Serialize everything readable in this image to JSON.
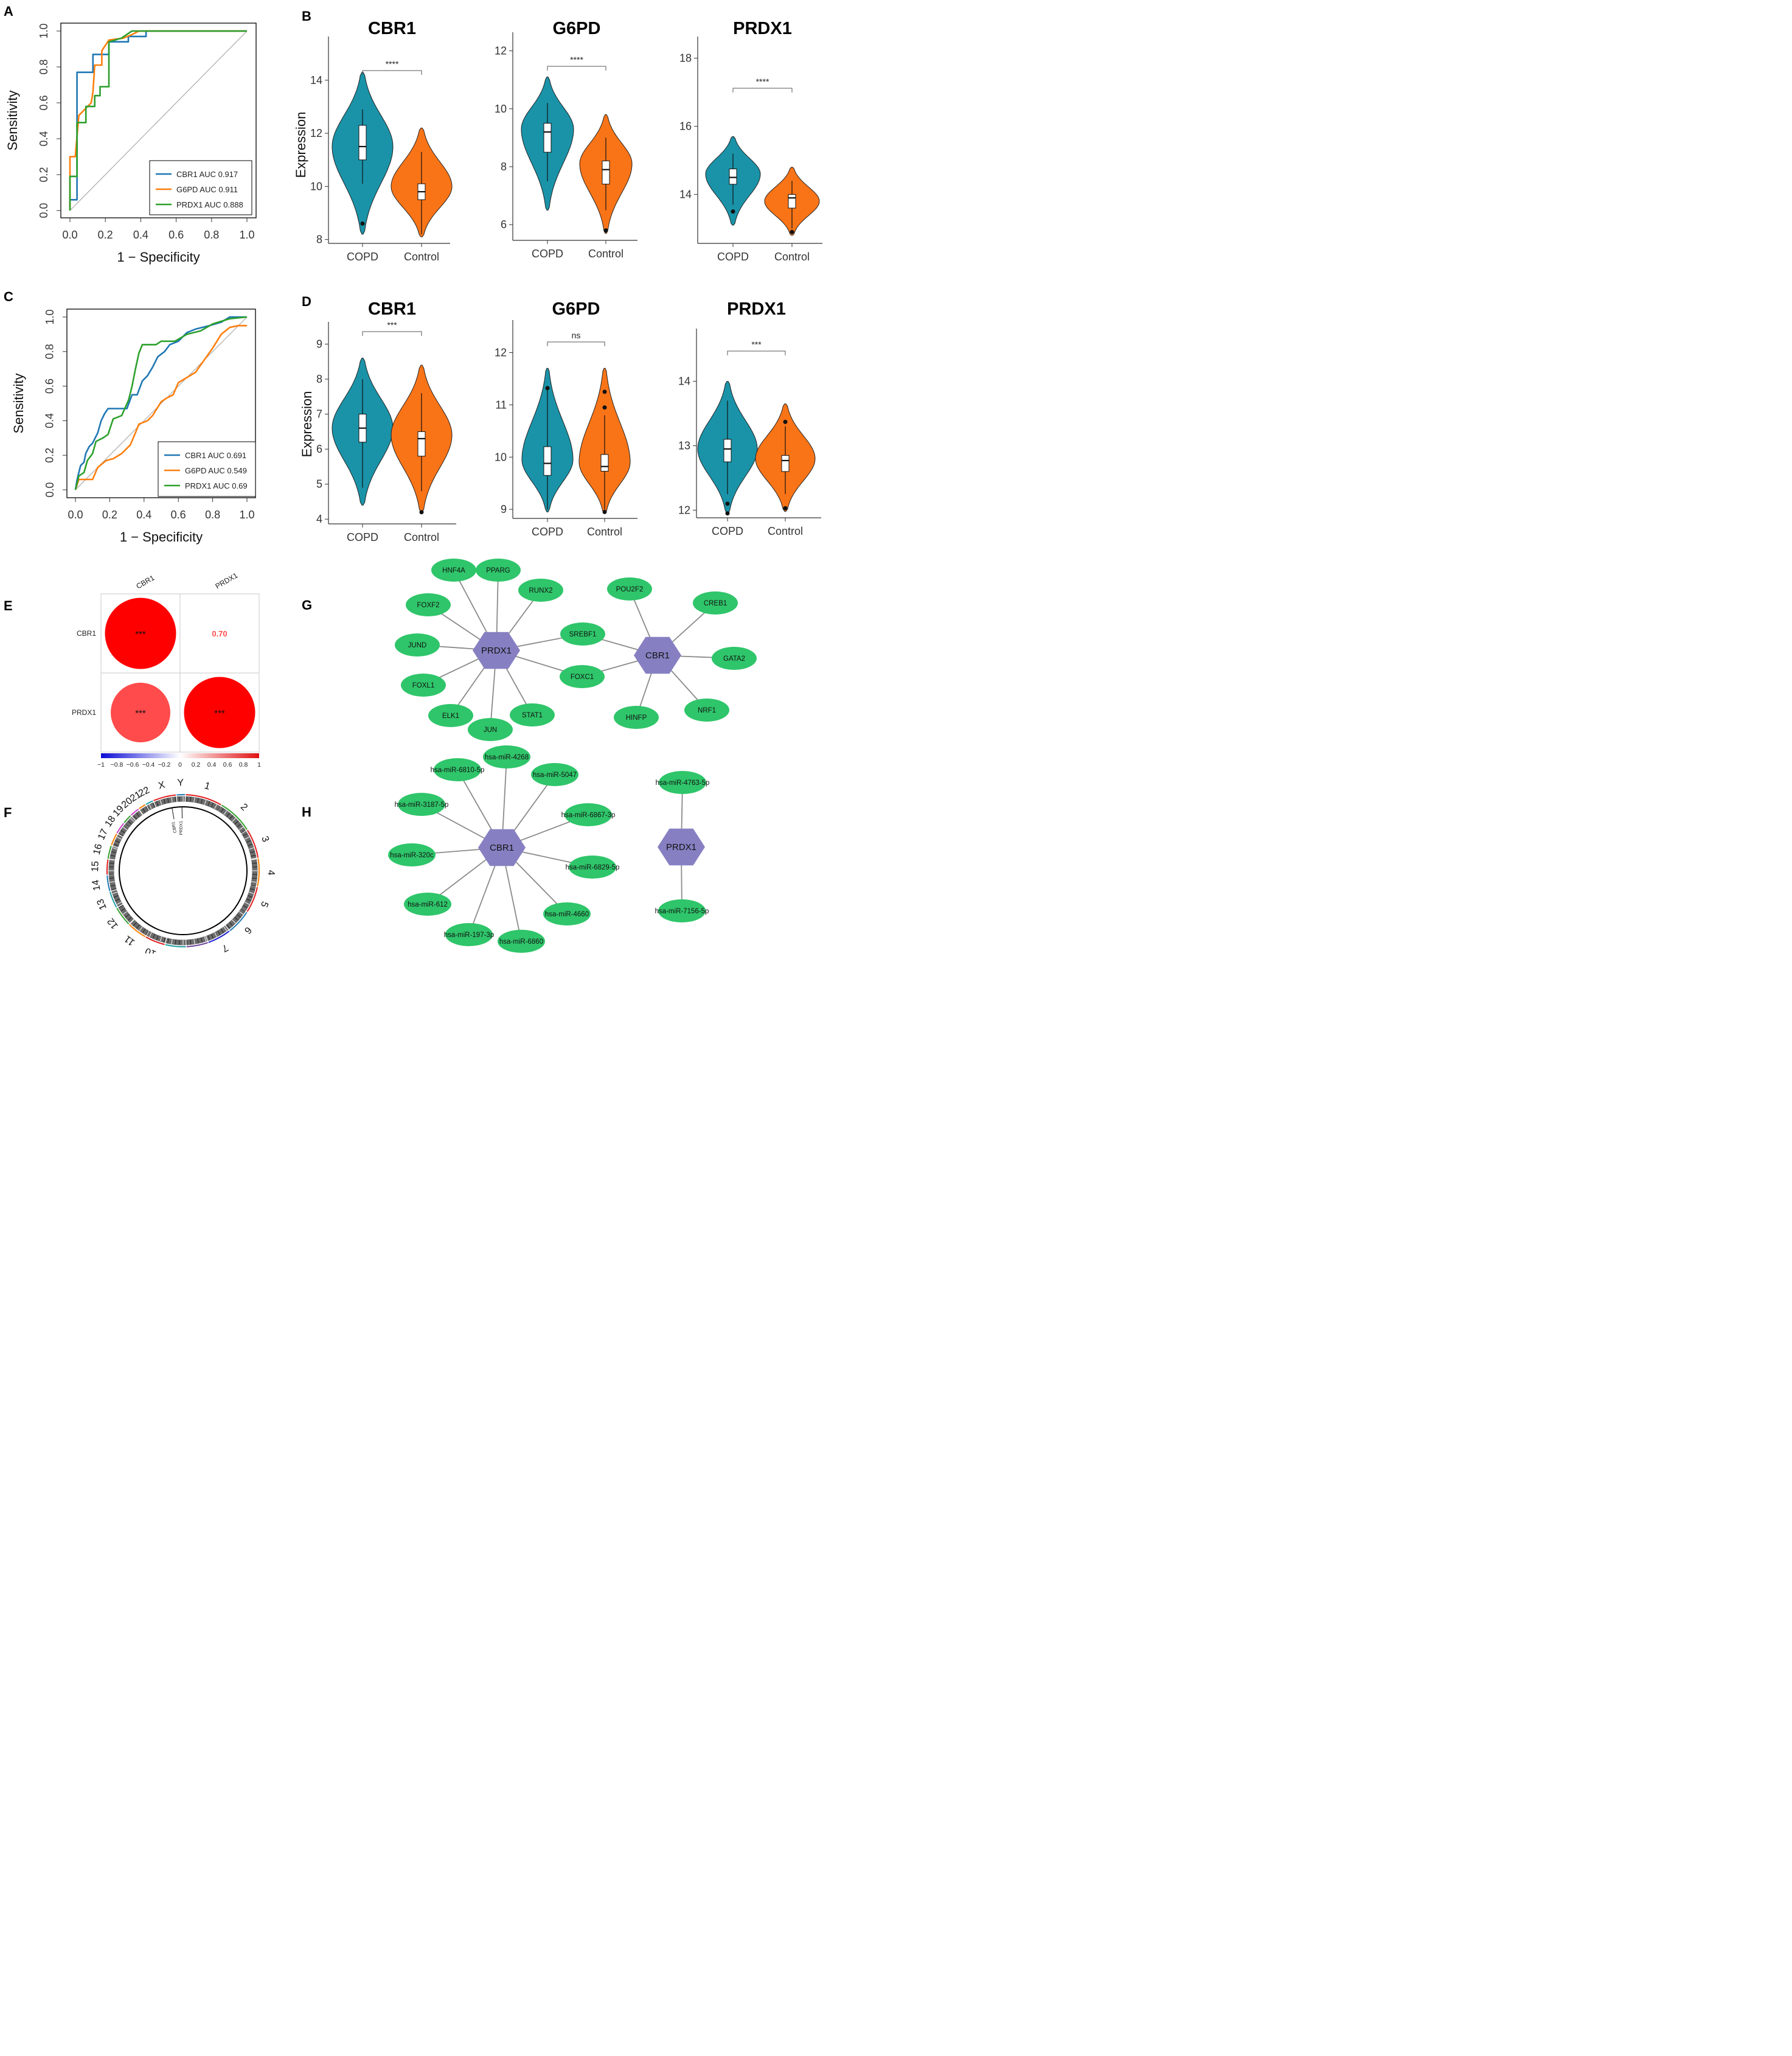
{
  "panels": {
    "A": "A",
    "B": "B",
    "C": "C",
    "D": "D",
    "E": "E",
    "F": "F",
    "G": "G",
    "H": "H"
  },
  "colors": {
    "cbr1": "#1f77b4",
    "g6pd": "#ff7f0e",
    "prdx1": "#2ca02c",
    "copd": "#1a93a8",
    "control": "#f97417",
    "node": "#2fc56a",
    "hub": "#8680c2"
  },
  "chart_data": [
    {
      "id": "A",
      "type": "line",
      "xlabel": "1 − Specificity",
      "ylabel": "Sensitivity",
      "xlim": [
        0,
        1
      ],
      "ylim": [
        0,
        1
      ],
      "ticks": [
        "0.0",
        "0.2",
        "0.4",
        "0.6",
        "0.8",
        "1.0"
      ],
      "series": [
        {
          "name": "CBR1 AUC 0.917",
          "key": "cbr1",
          "points": [
            [
              0,
              0
            ],
            [
              0,
              0.06
            ],
            [
              0.04,
              0.06
            ],
            [
              0.04,
              0.77
            ],
            [
              0.13,
              0.77
            ],
            [
              0.13,
              0.87
            ],
            [
              0.22,
              0.87
            ],
            [
              0.22,
              0.94
            ],
            [
              0.33,
              0.94
            ],
            [
              0.33,
              0.97
            ],
            [
              0.43,
              0.97
            ],
            [
              0.43,
              1
            ],
            [
              1,
              1
            ]
          ]
        },
        {
          "name": "G6PD AUC 0.911",
          "key": "g6pd",
          "points": [
            [
              0,
              0
            ],
            [
              0,
              0.3
            ],
            [
              0.03,
              0.3
            ],
            [
              0.05,
              0.53
            ],
            [
              0.12,
              0.6
            ],
            [
              0.13,
              0.66
            ],
            [
              0.14,
              0.81
            ],
            [
              0.18,
              0.81
            ],
            [
              0.18,
              0.89
            ],
            [
              0.22,
              0.95
            ],
            [
              0.3,
              0.96
            ],
            [
              0.35,
              0.98
            ],
            [
              0.39,
              1
            ],
            [
              1,
              1
            ]
          ]
        },
        {
          "name": "PRDX1 AUC 0.888",
          "key": "prdx1",
          "points": [
            [
              0,
              0
            ],
            [
              0,
              0.19
            ],
            [
              0.04,
              0.19
            ],
            [
              0.04,
              0.49
            ],
            [
              0.09,
              0.49
            ],
            [
              0.09,
              0.58
            ],
            [
              0.14,
              0.58
            ],
            [
              0.14,
              0.64
            ],
            [
              0.17,
              0.64
            ],
            [
              0.17,
              0.69
            ],
            [
              0.22,
              0.69
            ],
            [
              0.22,
              0.94
            ],
            [
              0.29,
              0.96
            ],
            [
              0.35,
              1
            ],
            [
              1,
              1
            ]
          ]
        }
      ]
    },
    {
      "id": "B",
      "type": "violin",
      "ylabel": "Expression",
      "groups": [
        "COPD",
        "Control"
      ],
      "plots": [
        {
          "title": "CBR1",
          "ylim": [
            7.9,
            15.6
          ],
          "ticks": [
            "8",
            "10",
            "12",
            "14"
          ],
          "sig": "****",
          "copd": {
            "min": 8.2,
            "max": 14.3,
            "q1": 11.0,
            "median": 11.5,
            "q3": 12.3,
            "wlo": 10.1,
            "whi": 12.9,
            "outliers": [
              8.6
            ],
            "peak": 11.5
          },
          "control": {
            "min": 8.1,
            "max": 12.2,
            "q1": 9.5,
            "median": 9.8,
            "q3": 10.1,
            "wlo": 8.2,
            "whi": 11.3,
            "outliers": [],
            "peak": 10.0
          }
        },
        {
          "title": "G6PD",
          "ylim": [
            5.5,
            12.6
          ],
          "ticks": [
            "6",
            "8",
            "10",
            "12"
          ],
          "sig": "****",
          "copd": {
            "min": 6.5,
            "max": 11.1,
            "q1": 8.5,
            "median": 9.2,
            "q3": 9.5,
            "wlo": 7.5,
            "whi": 10.2,
            "outliers": [],
            "peak": 9.3
          },
          "control": {
            "min": 5.7,
            "max": 9.8,
            "q1": 7.4,
            "median": 7.9,
            "q3": 8.2,
            "wlo": 6.5,
            "whi": 9.0,
            "outliers": [
              5.8
            ],
            "peak": 8.1
          }
        },
        {
          "title": "PRDX1",
          "ylim": [
            12.6,
            18.6
          ],
          "ticks": [
            "14",
            "16",
            "18"
          ],
          "sig": "****",
          "copd": {
            "min": 13.1,
            "max": 15.7,
            "q1": 14.3,
            "median": 14.5,
            "q3": 14.75,
            "wlo": 13.7,
            "whi": 15.2,
            "outliers": [
              13.5
            ],
            "peak": 14.6
          },
          "control": {
            "min": 12.8,
            "max": 14.8,
            "q1": 13.6,
            "median": 13.9,
            "q3": 14.0,
            "wlo": 13.0,
            "whi": 14.4,
            "outliers": [
              12.9
            ],
            "peak": 13.8
          }
        }
      ]
    },
    {
      "id": "C",
      "type": "line",
      "xlabel": "1 − Specificity",
      "ylabel": "Sensitivity",
      "xlim": [
        0,
        1
      ],
      "ylim": [
        0,
        1
      ],
      "ticks": [
        "0.0",
        "0.2",
        "0.4",
        "0.6",
        "0.8",
        "1.0"
      ],
      "series": [
        {
          "name": "CBR1 AUC 0.691",
          "key": "cbr1",
          "points": [
            [
              0,
              0
            ],
            [
              0.01,
              0.06
            ],
            [
              0.02,
              0.1
            ],
            [
              0.03,
              0.14
            ],
            [
              0.05,
              0.16
            ],
            [
              0.06,
              0.21
            ],
            [
              0.08,
              0.25
            ],
            [
              0.1,
              0.27
            ],
            [
              0.13,
              0.33
            ],
            [
              0.15,
              0.4
            ],
            [
              0.17,
              0.44
            ],
            [
              0.19,
              0.47
            ],
            [
              0.3,
              0.47
            ],
            [
              0.33,
              0.55
            ],
            [
              0.36,
              0.55
            ],
            [
              0.39,
              0.63
            ],
            [
              0.42,
              0.66
            ],
            [
              0.45,
              0.71
            ],
            [
              0.48,
              0.77
            ],
            [
              0.52,
              0.8
            ],
            [
              0.55,
              0.84
            ],
            [
              0.6,
              0.86
            ],
            [
              0.65,
              0.91
            ],
            [
              0.7,
              0.93
            ],
            [
              0.78,
              0.95
            ],
            [
              0.85,
              0.97
            ],
            [
              0.9,
              1
            ],
            [
              1,
              1
            ]
          ]
        },
        {
          "name": "G6PD AUC 0.549",
          "key": "g6pd",
          "points": [
            [
              0,
              0
            ],
            [
              0.02,
              0.06
            ],
            [
              0.1,
              0.06
            ],
            [
              0.13,
              0.13
            ],
            [
              0.18,
              0.17
            ],
            [
              0.22,
              0.18
            ],
            [
              0.27,
              0.21
            ],
            [
              0.32,
              0.26
            ],
            [
              0.35,
              0.33
            ],
            [
              0.37,
              0.38
            ],
            [
              0.42,
              0.4
            ],
            [
              0.45,
              0.43
            ],
            [
              0.5,
              0.51
            ],
            [
              0.53,
              0.53
            ],
            [
              0.57,
              0.55
            ],
            [
              0.6,
              0.62
            ],
            [
              0.7,
              0.68
            ],
            [
              0.75,
              0.75
            ],
            [
              0.8,
              0.82
            ],
            [
              0.85,
              0.9
            ],
            [
              0.9,
              0.94
            ],
            [
              0.95,
              0.95
            ],
            [
              1,
              0.95
            ]
          ]
        },
        {
          "name": "PRDX1 AUC 0.69",
          "key": "prdx1",
          "points": [
            [
              0,
              0
            ],
            [
              0.02,
              0.08
            ],
            [
              0.05,
              0.1
            ],
            [
              0.07,
              0.17
            ],
            [
              0.1,
              0.21
            ],
            [
              0.12,
              0.28
            ],
            [
              0.16,
              0.3
            ],
            [
              0.19,
              0.32
            ],
            [
              0.22,
              0.41
            ],
            [
              0.27,
              0.43
            ],
            [
              0.31,
              0.52
            ],
            [
              0.33,
              0.6
            ],
            [
              0.35,
              0.7
            ],
            [
              0.37,
              0.79
            ],
            [
              0.39,
              0.84
            ],
            [
              0.47,
              0.84
            ],
            [
              0.5,
              0.86
            ],
            [
              0.53,
              0.86
            ],
            [
              0.58,
              0.86
            ],
            [
              0.65,
              0.9
            ],
            [
              0.73,
              0.92
            ],
            [
              0.8,
              0.96
            ],
            [
              0.9,
              0.99
            ],
            [
              1,
              1
            ]
          ]
        }
      ]
    },
    {
      "id": "D",
      "type": "violin",
      "ylabel": "Expression",
      "groups": [
        "COPD",
        "Control"
      ],
      "plots": [
        {
          "title": "CBR1",
          "ylim": [
            3.9,
            9.6
          ],
          "ticks": [
            "4",
            "5",
            "6",
            "7",
            "8",
            "9"
          ],
          "sig": "***",
          "copd": {
            "min": 4.4,
            "max": 8.6,
            "q1": 6.2,
            "median": 6.6,
            "q3": 7.0,
            "wlo": 4.9,
            "whi": 8.0,
            "outliers": [],
            "peak": 6.6
          },
          "control": {
            "min": 4.2,
            "max": 8.4,
            "q1": 5.8,
            "median": 6.3,
            "q3": 6.5,
            "wlo": 4.8,
            "whi": 7.6,
            "outliers": [
              4.2
            ],
            "peak": 6.4
          }
        },
        {
          "title": "G6PD",
          "ylim": [
            8.85,
            12.6
          ],
          "ticks": [
            "9",
            "10",
            "11",
            "12"
          ],
          "sig": "ns",
          "copd": {
            "min": 8.95,
            "max": 11.7,
            "q1": 9.65,
            "median": 9.88,
            "q3": 10.2,
            "wlo": 9.0,
            "whi": 11.3,
            "outliers": [
              11.32
            ],
            "peak": 9.95
          },
          "control": {
            "min": 8.92,
            "max": 11.7,
            "q1": 9.73,
            "median": 9.82,
            "q3": 10.05,
            "wlo": 9.0,
            "whi": 10.8,
            "outliers": [
              8.95,
              10.95,
              11.25
            ],
            "peak": 9.9
          }
        },
        {
          "title": "PRDX1",
          "ylim": [
            11.9,
            14.8
          ],
          "ticks": [
            "12",
            "13",
            "14"
          ],
          "sig": "***",
          "copd": {
            "min": 11.95,
            "max": 14.0,
            "q1": 12.75,
            "median": 12.95,
            "q3": 13.1,
            "wlo": 12.25,
            "whi": 13.7,
            "outliers": [
              12.1,
              11.95
            ],
            "peak": 12.95
          },
          "control": {
            "min": 11.98,
            "max": 13.65,
            "q1": 12.6,
            "median": 12.77,
            "q3": 12.85,
            "wlo": 12.25,
            "whi": 13.3,
            "outliers": [
              13.37,
              12.03
            ],
            "peak": 12.8
          }
        }
      ]
    },
    {
      "id": "E",
      "type": "heatmap",
      "labels": [
        "CBR1",
        "PRDX1"
      ],
      "values": [
        [
          1.0,
          0.7
        ],
        [
          0.7,
          1.0
        ]
      ],
      "cells": [
        [
          "***",
          "0.70"
        ],
        [
          "***",
          "***"
        ]
      ],
      "scale": {
        "min": -1,
        "max": 1,
        "ticks": [
          "−1",
          "−0.8",
          "−0.6",
          "−0.4",
          "−0.2",
          "0",
          "0.2",
          "0.4",
          "0.6",
          "0.8",
          "1"
        ]
      }
    }
  ],
  "circos": {
    "chromosomes": [
      "1",
      "2",
      "3",
      "4",
      "5",
      "6",
      "7",
      "8",
      "9",
      "10",
      "11",
      "12",
      "13",
      "14",
      "15",
      "16",
      "17",
      "18",
      "19",
      "20",
      "21",
      "22",
      "X",
      "Y"
    ],
    "genes": [
      {
        "label": "CBR1"
      },
      {
        "label": "PRDX1"
      }
    ]
  },
  "networkG": {
    "hubs": [
      {
        "id": "PRDX1",
        "label": "PRDX1"
      },
      {
        "id": "CBR1",
        "label": "CBR1"
      }
    ],
    "nodes": [
      {
        "label": "HNF4A",
        "hub": "PRDX1"
      },
      {
        "label": "PPARG",
        "hub": "PRDX1"
      },
      {
        "label": "RUNX2",
        "hub": "PRDX1"
      },
      {
        "label": "FOXF2",
        "hub": "PRDX1"
      },
      {
        "label": "JUND",
        "hub": "PRDX1"
      },
      {
        "label": "FOXL1",
        "hub": "PRDX1"
      },
      {
        "label": "ELK1",
        "hub": "PRDX1"
      },
      {
        "label": "JUN",
        "hub": "PRDX1"
      },
      {
        "label": "STAT1",
        "hub": "PRDX1"
      },
      {
        "label": "SREBF1",
        "hub": "both"
      },
      {
        "label": "FOXC1",
        "hub": "both"
      },
      {
        "label": "POU2F2",
        "hub": "CBR1"
      },
      {
        "label": "CREB1",
        "hub": "CBR1"
      },
      {
        "label": "GATA2",
        "hub": "CBR1"
      },
      {
        "label": "NRF1",
        "hub": "CBR1"
      },
      {
        "label": "HINFP",
        "hub": "CBR1"
      }
    ]
  },
  "networkH": {
    "hubs": [
      {
        "id": "CBR1",
        "label": "CBR1"
      },
      {
        "id": "PRDX1",
        "label": "PRDX1"
      }
    ],
    "nodes": [
      {
        "label": "hsa-miR-4268",
        "hub": "CBR1"
      },
      {
        "label": "hsa-miR-6810-5p",
        "hub": "CBR1"
      },
      {
        "label": "hsa-miR-5047",
        "hub": "CBR1"
      },
      {
        "label": "hsa-miR-3187-5p",
        "hub": "CBR1"
      },
      {
        "label": "hsa-miR-6867-3p",
        "hub": "CBR1"
      },
      {
        "label": "hsa-miR-320c",
        "hub": "CBR1"
      },
      {
        "label": "hsa-miR-6829-5p",
        "hub": "CBR1"
      },
      {
        "label": "hsa-miR-612",
        "hub": "CBR1"
      },
      {
        "label": "hsa-miR-4660",
        "hub": "CBR1"
      },
      {
        "label": "hsa-miR-197-3p",
        "hub": "CBR1"
      },
      {
        "label": "hsa-miR-6860",
        "hub": "CBR1"
      },
      {
        "label": "hsa-miR-4763-5p",
        "hub": "PRDX1"
      },
      {
        "label": "hsa-miR-7156-5p",
        "hub": "PRDX1"
      }
    ]
  }
}
